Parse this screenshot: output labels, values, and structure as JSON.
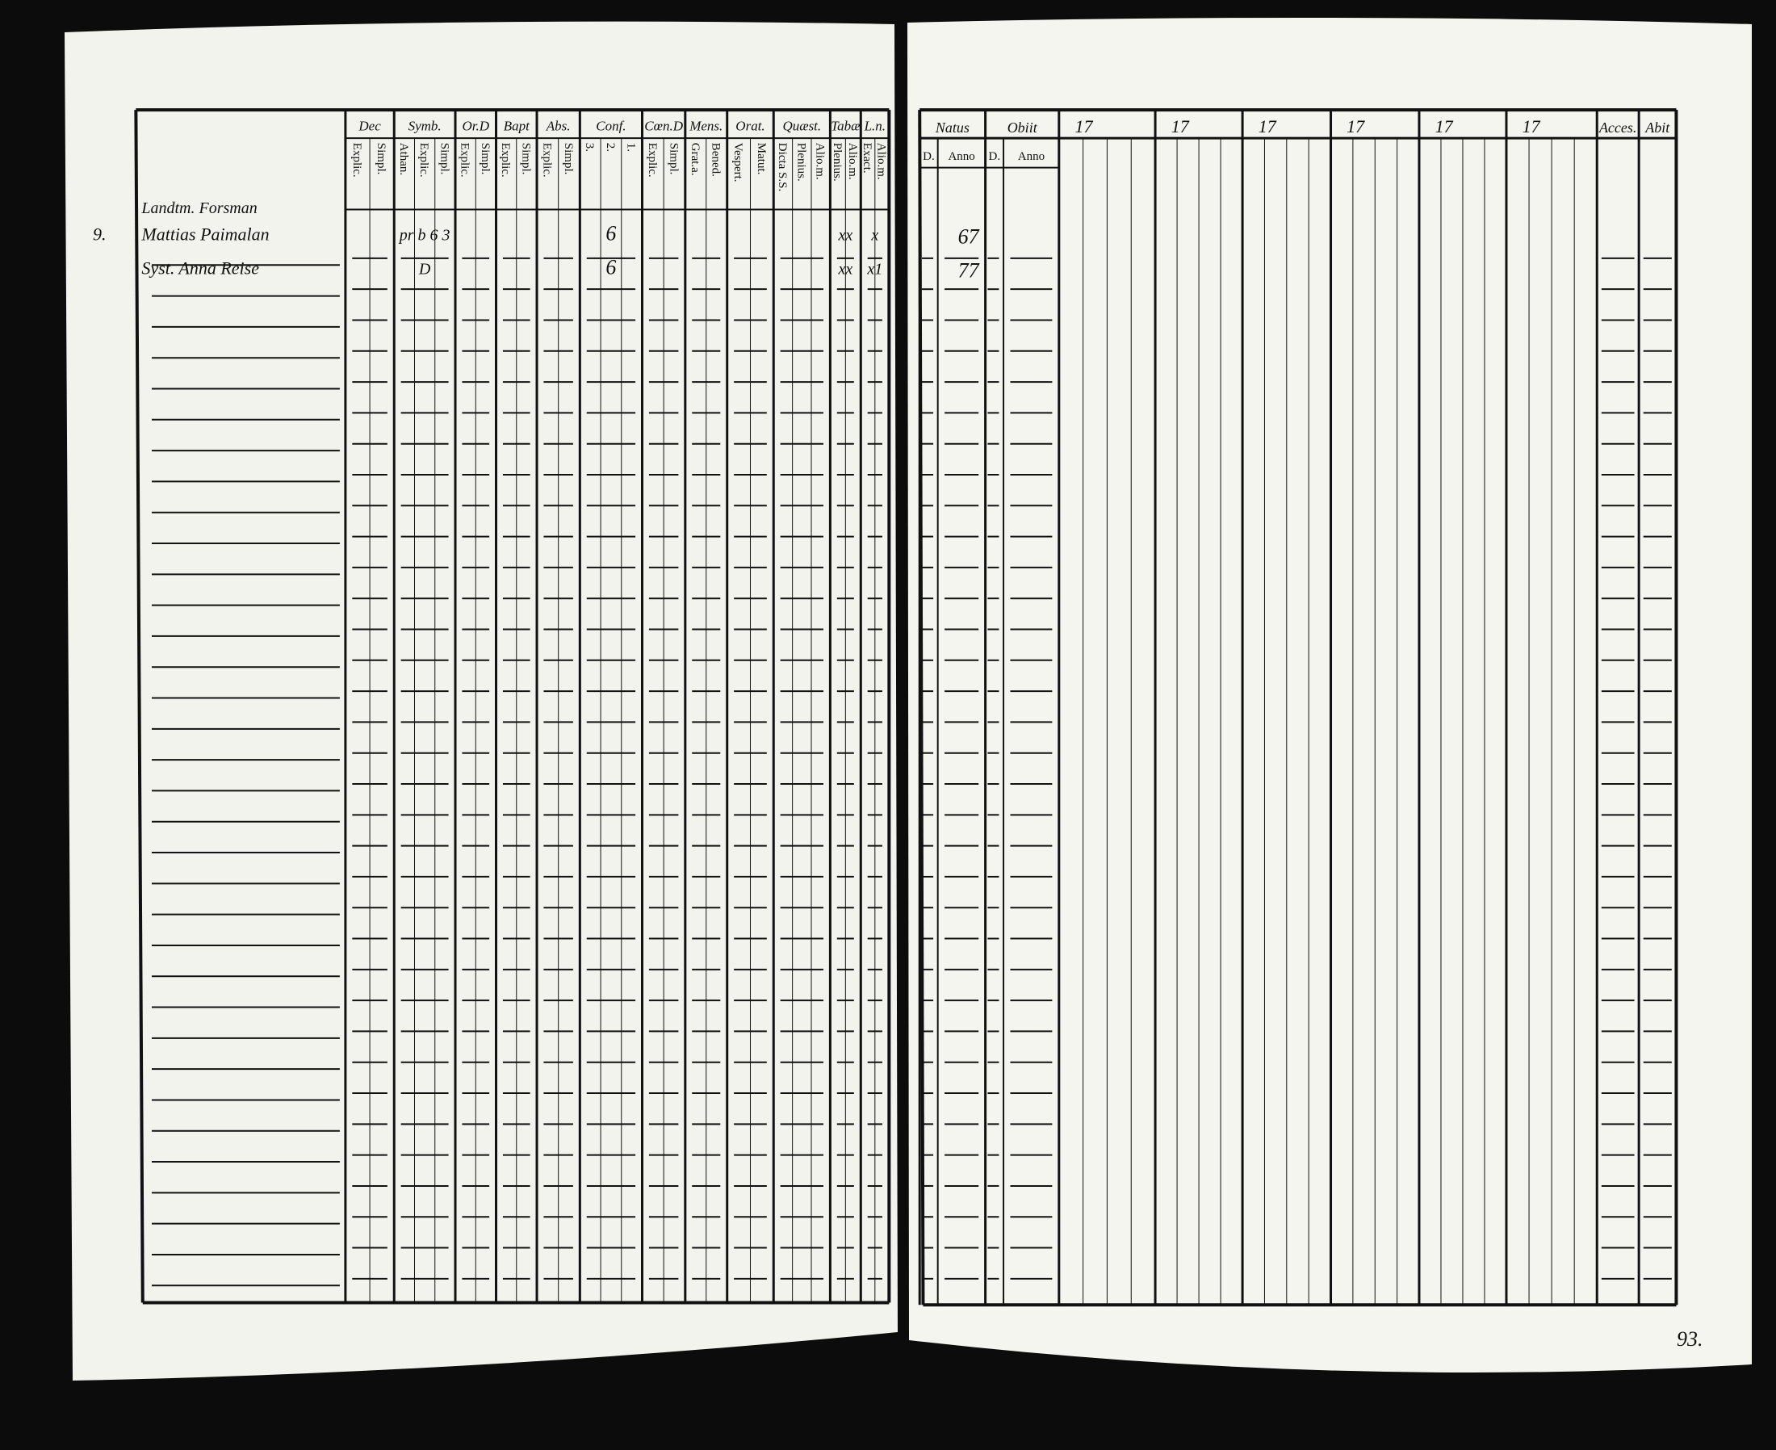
{
  "left_page": {
    "headers": [
      {
        "title": "Dec",
        "sub": [
          "Explic.",
          "Simpl."
        ]
      },
      {
        "title": "Symb.",
        "sub": [
          "Athan.",
          "Explic.",
          "Simpl."
        ]
      },
      {
        "title": "Or.D",
        "sub": [
          "Explic.",
          "Simpl."
        ]
      },
      {
        "title": "Bapt",
        "sub": [
          "Explic.",
          "Simpl."
        ]
      },
      {
        "title": "Abs.",
        "sub": [
          "Explic.",
          "Simpl."
        ]
      },
      {
        "title": "Conf.",
        "sub": [
          "3.",
          "2.",
          "1."
        ]
      },
      {
        "title": "Cœn.D",
        "sub": [
          "Explic.",
          "Simpl."
        ]
      },
      {
        "title": "Mens.",
        "sub": [
          "Grat.a.",
          "Bened."
        ]
      },
      {
        "title": "Orat.",
        "sub": [
          "Vespert.",
          "Matut."
        ]
      },
      {
        "title": "Quæst.",
        "sub": [
          "Dicta S.S.",
          "Plenius.",
          "Alio.m."
        ]
      },
      {
        "title": "Tabæ",
        "sub": [
          "Plenius.",
          "Alio.m."
        ]
      },
      {
        "title": "L.n.",
        "sub": [
          "Exact.",
          "Alio.m."
        ]
      }
    ],
    "household": "Landtm. Forsman",
    "entries": [
      {
        "number": "9.",
        "name": "Mattias Paimalan",
        "symb": "pr b 6 3",
        "conf": "6",
        "tabae": "xx",
        "ln": "x"
      },
      {
        "name": "Syst. Anna Reise",
        "symb": "D",
        "conf": "6",
        "tabae": "xx",
        "ln": "x1"
      }
    ]
  },
  "right_page": {
    "headers": [
      "Natus",
      "Obiit",
      "17",
      "17",
      "17",
      "17",
      "17",
      "17",
      "Acces.",
      "Abit"
    ],
    "natus_sub": [
      "D.",
      "Anno"
    ],
    "obiit_sub": [
      "D.",
      "Anno"
    ],
    "births": [
      "67",
      "77"
    ],
    "page_number": "93."
  }
}
